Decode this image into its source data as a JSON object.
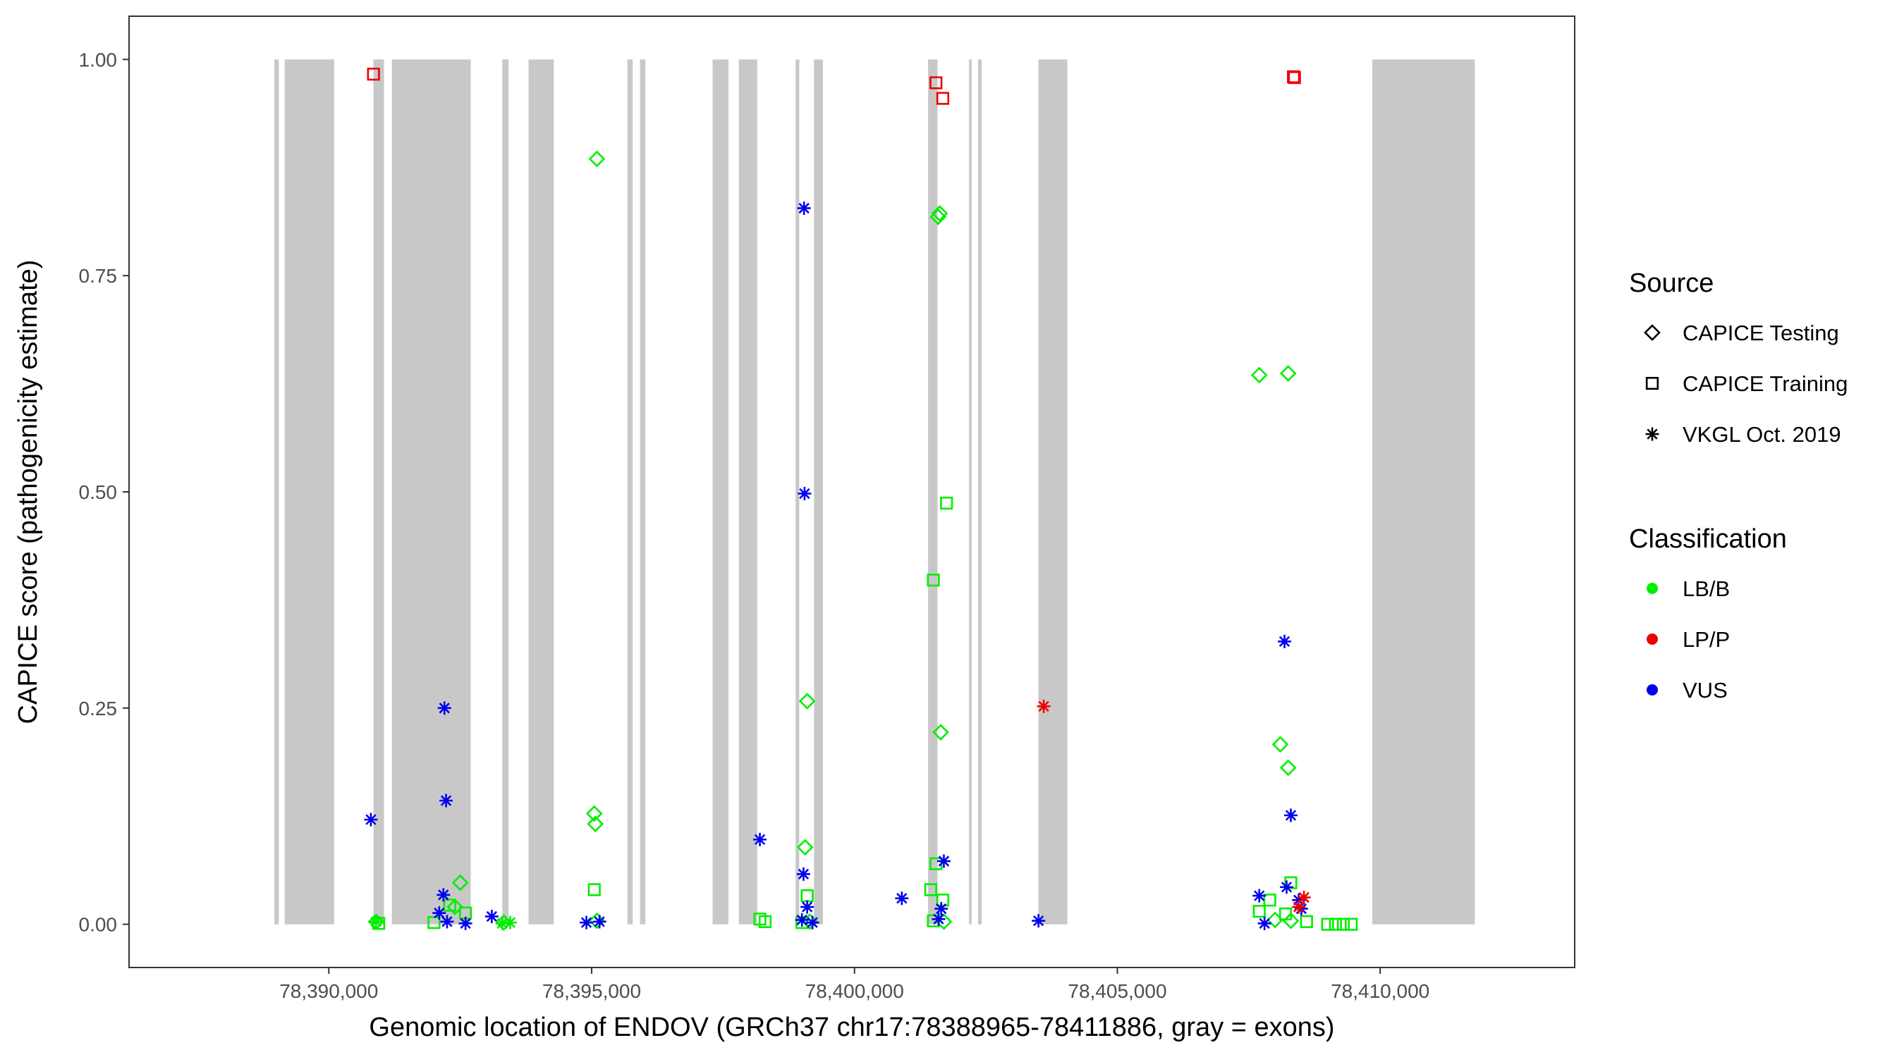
{
  "chart_data": {
    "type": "scatter",
    "title": "",
    "xlabel": "Genomic location of ENDOV (GRCh37 chr17:78388965-78411886, gray = exons)",
    "ylabel": "CAPICE score (pathogenicity estimate)",
    "xlim": [
      78386200,
      78413700
    ],
    "ylim": [
      -0.05,
      1.05
    ],
    "x_ticks": [
      78390000,
      78395000,
      78400000,
      78405000,
      78410000
    ],
    "x_tick_labels": [
      "78,390,000",
      "78,395,000",
      "78,400,000",
      "78,405,000",
      "78,410,000"
    ],
    "y_ticks": [
      0,
      0.25,
      0.5,
      0.75,
      1
    ],
    "y_tick_labels": [
      "0.00",
      "0.25",
      "0.50",
      "0.75",
      "1.00"
    ],
    "grid": false,
    "legend_position": "right",
    "exon_color": "#c8c8c8",
    "exons": [
      [
        78388965,
        78389050
      ],
      [
        78389160,
        78390100
      ],
      [
        78390850,
        78391050
      ],
      [
        78391200,
        78392700
      ],
      [
        78393300,
        78393420
      ],
      [
        78393800,
        78394280
      ],
      [
        78395680,
        78395780
      ],
      [
        78395920,
        78396020
      ],
      [
        78397300,
        78397600
      ],
      [
        78397800,
        78398150
      ],
      [
        78398880,
        78398950
      ],
      [
        78399230,
        78399400
      ],
      [
        78401400,
        78401580
      ],
      [
        78402180,
        78402230
      ],
      [
        78402350,
        78402420
      ],
      [
        78403500,
        78404050
      ],
      [
        78409850,
        78411800
      ]
    ],
    "legend": {
      "source": {
        "title": "Source",
        "items": [
          {
            "label": "CAPICE Testing",
            "shape": "diamond"
          },
          {
            "label": "CAPICE Training",
            "shape": "square"
          },
          {
            "label": "VKGL Oct. 2019",
            "shape": "asterisk"
          }
        ]
      },
      "classification": {
        "title": "Classification",
        "items": [
          {
            "label": "LB/B",
            "color": "#00ee00"
          },
          {
            "label": "LP/P",
            "color": "#ee0000"
          },
          {
            "label": "VUS",
            "color": "#0000ee"
          }
        ]
      }
    },
    "series": [
      {
        "source": "CAPICE Testing",
        "classification": "LB/B",
        "x": [
          78395100,
          78395050,
          78395070,
          78399100,
          78399060,
          78401620,
          78401590,
          78401640,
          78407700,
          78408250,
          78408100,
          78408250,
          78392500,
          78392400,
          78390900,
          78393330,
          78395100,
          78399150,
          78401700,
          78408000,
          78408300
        ],
        "y": [
          0.885,
          0.128,
          0.116,
          0.258,
          0.089,
          0.822,
          0.818,
          0.222,
          0.635,
          0.637,
          0.208,
          0.181,
          0.048,
          0.02,
          0.003,
          0.002,
          0.004,
          0.003,
          0.003,
          0.005,
          0.004
        ]
      },
      {
        "source": "CAPICE Training",
        "classification": "LP/P",
        "x": [
          78390850,
          78401550,
          78401680,
          78408350,
          78408370
        ],
        "y": [
          0.983,
          0.973,
          0.955,
          0.98,
          0.979
        ]
      },
      {
        "source": "CAPICE Training",
        "classification": "LB/B",
        "x": [
          78401750,
          78401500,
          78395050,
          78399100,
          78398200,
          78398300,
          78401450,
          78401550,
          78401680,
          78392300,
          78392600,
          78390950,
          78407700,
          78407900,
          78408200,
          78408300,
          78409000,
          78409150,
          78409300,
          78409450,
          78408600,
          78392000,
          78401500,
          78399000
        ],
        "y": [
          0.487,
          0.398,
          0.04,
          0.033,
          0.006,
          0.003,
          0.04,
          0.07,
          0.028,
          0.022,
          0.013,
          0.001,
          0.015,
          0.028,
          0.012,
          0.048,
          0.0,
          0.0,
          0.0,
          0.0,
          0.003,
          0.002,
          0.004,
          0.002
        ]
      },
      {
        "source": "VKGL Oct. 2019",
        "classification": "VUS",
        "x": [
          78399040,
          78399050,
          78398200,
          78399030,
          78400900,
          78401700,
          78401650,
          78392200,
          78392230,
          78392180,
          78392100,
          78390800,
          78393100,
          78408180,
          78408300,
          78408220,
          78408450,
          78407700,
          78403500,
          78399000,
          78399100,
          78392600,
          78392250,
          78401600,
          78408500,
          78407800,
          78394900,
          78395150,
          78399200
        ],
        "y": [
          0.828,
          0.498,
          0.098,
          0.058,
          0.03,
          0.073,
          0.018,
          0.25,
          0.143,
          0.034,
          0.013,
          0.121,
          0.009,
          0.327,
          0.126,
          0.043,
          0.028,
          0.033,
          0.004,
          0.005,
          0.02,
          0.001,
          0.003,
          0.006,
          0.018,
          0.001,
          0.002,
          0.003,
          0.002
        ]
      },
      {
        "source": "VKGL Oct. 2019",
        "classification": "LP/P",
        "x": [
          78403600,
          78408450,
          78408550
        ],
        "y": [
          0.252,
          0.02,
          0.031
        ]
      },
      {
        "source": "VKGL Oct. 2019",
        "classification": "LB/B",
        "x": [
          78393300,
          78393450,
          78390900
        ],
        "y": [
          0.001,
          0.002,
          0.003
        ]
      }
    ]
  }
}
